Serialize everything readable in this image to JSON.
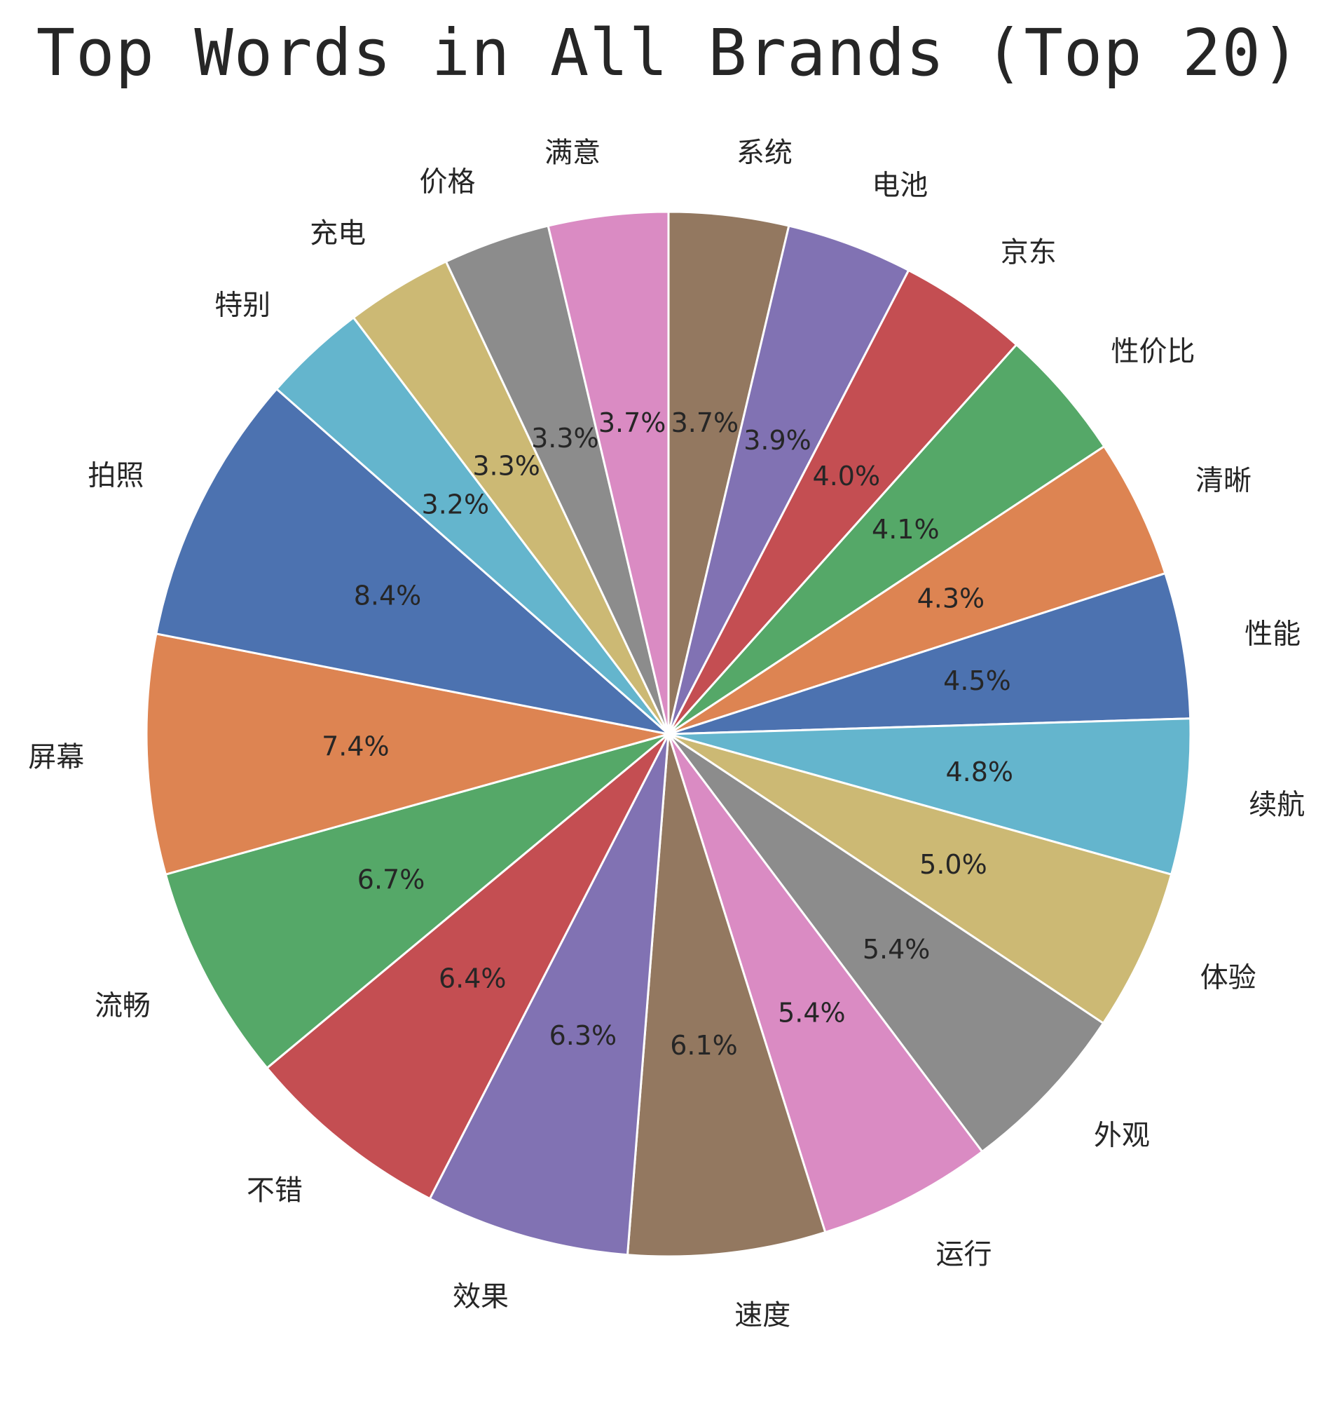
{
  "chart_data": {
    "type": "pie",
    "title": "Top Words in All Brands (Top 20)",
    "start_angle_deg": 90,
    "direction": "clockwise",
    "edge_color": "#ffffff",
    "slices": [
      {
        "label": "系统",
        "value": 3.7,
        "pct_label": "3.7%",
        "color": "#937860"
      },
      {
        "label": "电池",
        "value": 3.9,
        "pct_label": "3.9%",
        "color": "#8172b3"
      },
      {
        "label": "京东",
        "value": 4.0,
        "pct_label": "4.0%",
        "color": "#c44e52"
      },
      {
        "label": "性价比",
        "value": 4.1,
        "pct_label": "4.1%",
        "color": "#55a868"
      },
      {
        "label": "清晰",
        "value": 4.3,
        "pct_label": "4.3%",
        "color": "#dd8452"
      },
      {
        "label": "性能",
        "value": 4.5,
        "pct_label": "4.5%",
        "color": "#4c72b0"
      },
      {
        "label": "续航",
        "value": 4.8,
        "pct_label": "4.8%",
        "color": "#64b5cd"
      },
      {
        "label": "体验",
        "value": 5.0,
        "pct_label": "5.0%",
        "color": "#ccb974"
      },
      {
        "label": "外观",
        "value": 5.4,
        "pct_label": "5.4%",
        "color": "#8c8c8c"
      },
      {
        "label": "运行",
        "value": 5.4,
        "pct_label": "5.4%",
        "color": "#da8bc3"
      },
      {
        "label": "速度",
        "value": 6.1,
        "pct_label": "6.1%",
        "color": "#937860"
      },
      {
        "label": "效果",
        "value": 6.3,
        "pct_label": "6.3%",
        "color": "#8172b3"
      },
      {
        "label": "不错",
        "value": 6.4,
        "pct_label": "6.4%",
        "color": "#c44e52"
      },
      {
        "label": "流畅",
        "value": 6.7,
        "pct_label": "6.7%",
        "color": "#55a868"
      },
      {
        "label": "屏幕",
        "value": 7.4,
        "pct_label": "7.4%",
        "color": "#dd8452"
      },
      {
        "label": "拍照",
        "value": 8.4,
        "pct_label": "8.4%",
        "color": "#4c72b0"
      },
      {
        "label": "特别",
        "value": 3.2,
        "pct_label": "3.2%",
        "color": "#64b5cd"
      },
      {
        "label": "充电",
        "value": 3.3,
        "pct_label": "3.3%",
        "color": "#ccb974"
      },
      {
        "label": "价格",
        "value": 3.3,
        "pct_label": "3.3%",
        "color": "#8c8c8c"
      },
      {
        "label": "满意",
        "value": 3.7,
        "pct_label": "3.7%",
        "color": "#da8bc3"
      }
    ]
  }
}
